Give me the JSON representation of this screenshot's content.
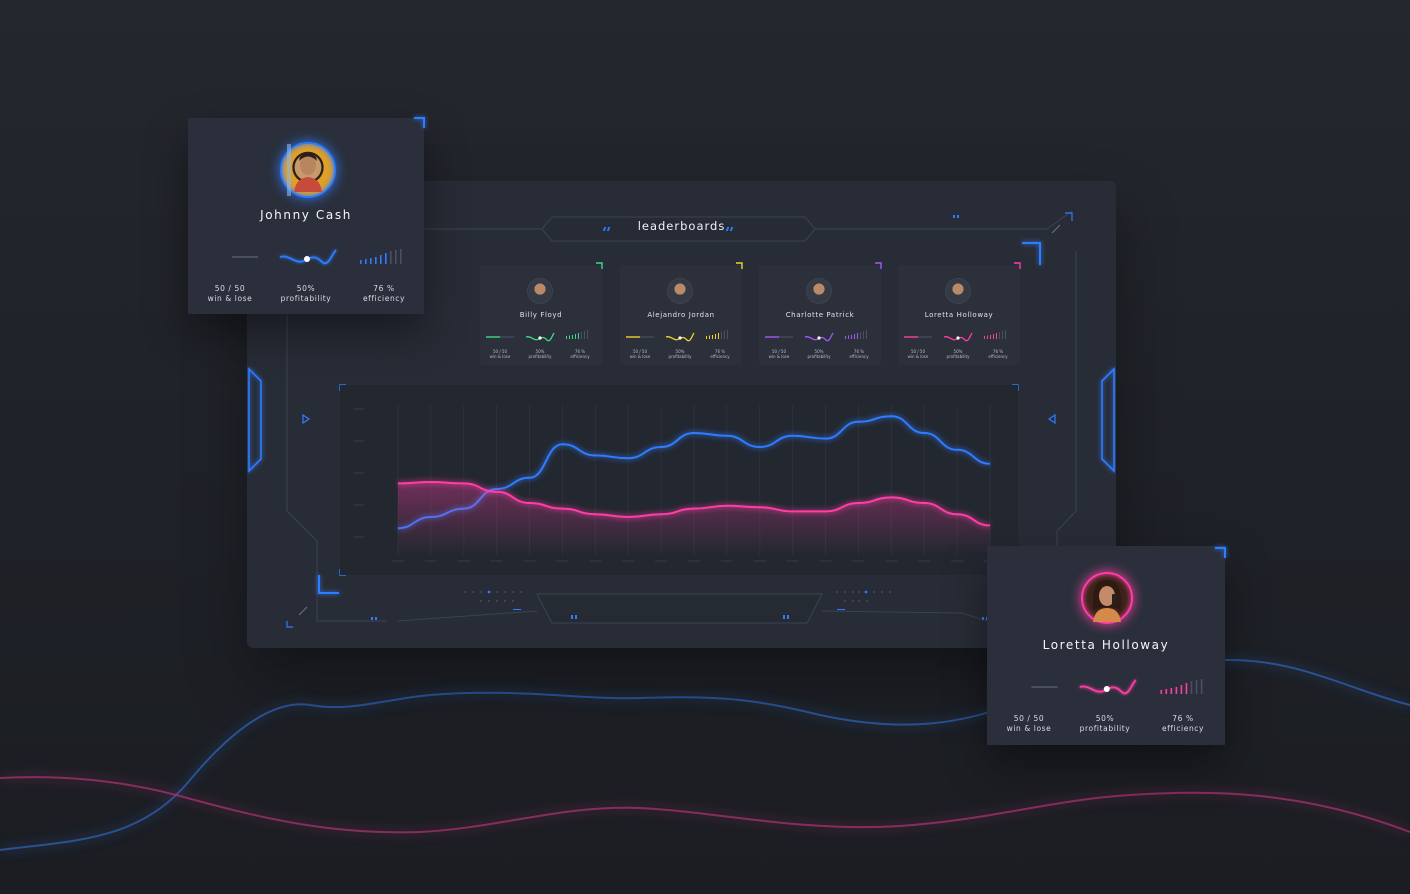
{
  "dashboard": {
    "title": "leaderboards",
    "players": [
      {
        "name": "Billy Floyd",
        "accent": "#3ddc84",
        "avatar_icon": "avatar-billy-icon",
        "winlose": "50 / 50",
        "winlose_label": "win & lose",
        "profit": "50%",
        "profit_label": "profitability",
        "efficiency": "76 %",
        "efficiency_label": "efficiency"
      },
      {
        "name": "Alejandro Jordan",
        "accent": "#f2d02a",
        "avatar_icon": "avatar-alejandro-icon",
        "winlose": "50 / 50",
        "winlose_label": "win & lose",
        "profit": "50%",
        "profit_label": "profitability",
        "efficiency": "76 %",
        "efficiency_label": "efficiency"
      },
      {
        "name": "Charlotte Patrick",
        "accent": "#a259f7",
        "avatar_icon": "avatar-charlotte-icon",
        "winlose": "50 / 50",
        "winlose_label": "win & lose",
        "profit": "50%",
        "profit_label": "profitability",
        "efficiency": "76 %",
        "efficiency_label": "efficiency"
      },
      {
        "name": "Loretta Holloway",
        "accent": "#ff3ea5",
        "avatar_icon": "avatar-loretta-icon",
        "winlose": "50 / 50",
        "winlose_label": "win & lose",
        "profit": "50%",
        "profit_label": "profitability",
        "efficiency": "76 %",
        "efficiency_label": "efficiency"
      }
    ]
  },
  "profile_left": {
    "name": "Johnny Cash",
    "accent": "#2f7bff",
    "avatar_icon": "avatar-johnny-icon",
    "winlose": "50 / 50",
    "winlose_label": "win & lose",
    "profit": "50%",
    "profit_label": "profitability",
    "efficiency": "76 %",
    "efficiency_label": "efficiency"
  },
  "profile_right": {
    "name": "Loretta Holloway",
    "accent": "#ff3ea5",
    "avatar_icon": "avatar-loretta-icon",
    "winlose": "50 / 50",
    "winlose_label": "win & lose",
    "profit": "50%",
    "profit_label": "profitability",
    "efficiency": "76 %",
    "efficiency_label": "efficiency"
  },
  "colors": {
    "blue": "#2f7bff",
    "pink": "#ff3ea5",
    "panel": "#282c36",
    "background": "#22252c"
  },
  "chart_data": {
    "type": "line",
    "title": "",
    "xlabel": "",
    "ylabel": "",
    "x": [
      0,
      1,
      2,
      3,
      4,
      5,
      6,
      7,
      8,
      9,
      10,
      11,
      12,
      13,
      14,
      15,
      16,
      17,
      18
    ],
    "ylim": [
      0,
      100
    ],
    "grid": true,
    "series": [
      {
        "color": "#2f7bff",
        "values": [
          12,
          20,
          26,
          40,
          48,
          72,
          64,
          62,
          70,
          80,
          78,
          70,
          78,
          76,
          88,
          92,
          80,
          68,
          58
        ]
      },
      {
        "color": "#ff3ea5",
        "area": true,
        "values": [
          44,
          45,
          44,
          38,
          30,
          26,
          22,
          20,
          22,
          26,
          28,
          27,
          24,
          24,
          30,
          34,
          30,
          22,
          14
        ]
      }
    ]
  }
}
